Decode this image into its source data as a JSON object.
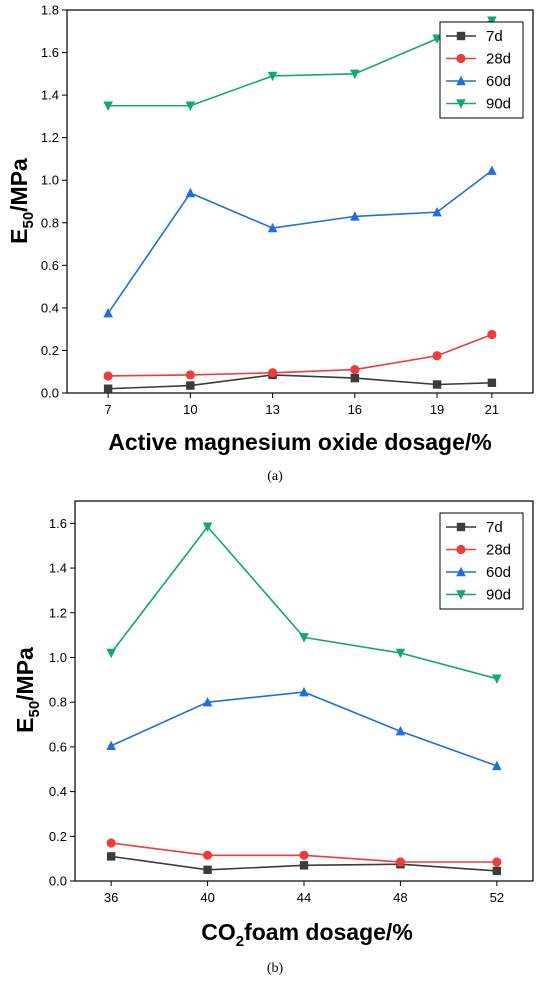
{
  "chart_data": [
    {
      "type": "line",
      "caption": "(a)",
      "xlabel": "Active magnesium oxide dosage/%",
      "ylabel_main": "E",
      "ylabel_sub": "50",
      "ylabel_tail": "/MPa",
      "x": [
        7,
        10,
        13,
        16,
        19,
        21
      ],
      "x_ticks": [
        "7",
        "10",
        "13",
        "16",
        "19",
        "21"
      ],
      "xlim": [
        5.5,
        22.5
      ],
      "ylim": [
        0,
        1.8
      ],
      "y_ticks": [
        "0.0",
        "0.2",
        "0.4",
        "0.6",
        "0.8",
        "1.0",
        "1.2",
        "1.4",
        "1.6",
        "1.8"
      ],
      "legend_position": "top-right",
      "series": [
        {
          "name": "7d",
          "color": "#3c3c3c",
          "marker": "square",
          "values": [
            0.02,
            0.035,
            0.085,
            0.07,
            0.04,
            0.048
          ]
        },
        {
          "name": "28d",
          "color": "#ee3b3b",
          "marker": "circle",
          "values": [
            0.08,
            0.085,
            0.095,
            0.11,
            0.175,
            0.275
          ]
        },
        {
          "name": "60d",
          "color": "#1f6fde",
          "marker": "triangle-up",
          "values": [
            0.375,
            0.94,
            0.775,
            0.83,
            0.85,
            1.045
          ]
        },
        {
          "name": "90d",
          "color": "#14a86e",
          "marker": "triangle-down",
          "values": [
            1.35,
            1.35,
            1.49,
            1.5,
            1.665,
            1.75
          ]
        }
      ]
    },
    {
      "type": "line",
      "caption": "(b)",
      "xlabel_pre": "CO",
      "xlabel_sub": "2",
      "xlabel_post": "foam dosage/%",
      "ylabel_main": "E",
      "ylabel_sub": "50",
      "ylabel_tail": "/MPa",
      "x": [
        36,
        40,
        44,
        48,
        52
      ],
      "x_ticks": [
        "36",
        "40",
        "44",
        "48",
        "52"
      ],
      "xlim": [
        34.5,
        53.5
      ],
      "ylim": [
        0,
        1.7
      ],
      "y_ticks": [
        "0.0",
        "0.2",
        "0.4",
        "0.6",
        "0.8",
        "1.0",
        "1.2",
        "1.4",
        "1.6"
      ],
      "legend_position": "top-right",
      "series": [
        {
          "name": "7d",
          "color": "#3c3c3c",
          "marker": "square",
          "values": [
            0.11,
            0.05,
            0.07,
            0.075,
            0.045
          ]
        },
        {
          "name": "28d",
          "color": "#ee3b3b",
          "marker": "circle",
          "values": [
            0.17,
            0.115,
            0.115,
            0.085,
            0.085
          ]
        },
        {
          "name": "60d",
          "color": "#1f6fde",
          "marker": "triangle-up",
          "values": [
            0.605,
            0.8,
            0.845,
            0.67,
            0.515
          ]
        },
        {
          "name": "90d",
          "color": "#14a86e",
          "marker": "triangle-down",
          "values": [
            1.02,
            1.585,
            1.09,
            1.02,
            0.905
          ]
        }
      ]
    }
  ]
}
